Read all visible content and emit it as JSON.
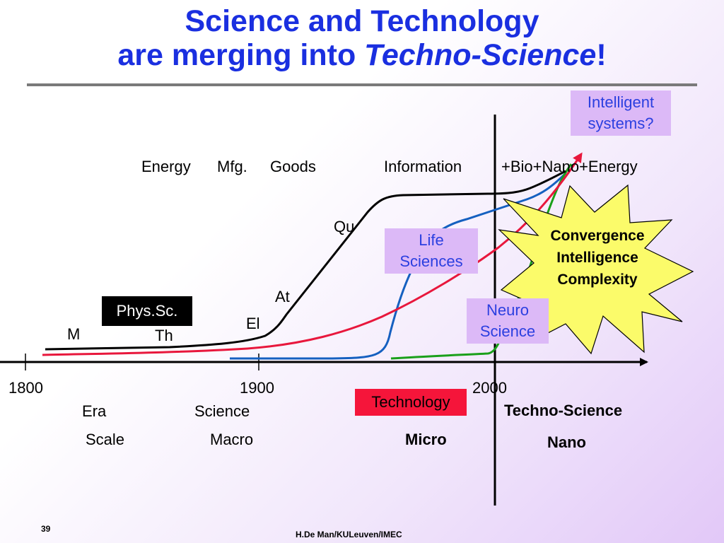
{
  "title": {
    "line1": "Science and Technology",
    "line2_prefix": "are merging into ",
    "line2_italic": "Techno-Science",
    "line2_suffix": "!"
  },
  "axis": {
    "ticks": [
      "1800",
      "1900",
      "2000"
    ]
  },
  "era_labels": {
    "row_label": "Era",
    "science": "Science",
    "technology": "Technology",
    "techno_science": "Techno-Science"
  },
  "scale_labels": {
    "row_label": "Scale",
    "macro": "Macro",
    "micro": "Micro",
    "nano": "Nano"
  },
  "domains": {
    "energy": "Energy",
    "mfg": "Mfg.",
    "goods": "Goods",
    "information": "Information",
    "plus_domains": "+Bio+Nano+Energy"
  },
  "curve_labels": {
    "m": "M",
    "th": "Th",
    "el": "El",
    "at": "At",
    "qu": "Qu",
    "phys_sc": "Phys.Sc."
  },
  "boxes": {
    "intelligent_line1": "Intelligent",
    "intelligent_line2": "systems?",
    "life_line1": "Life",
    "life_line2": "Sciences",
    "neuro_line1": "Neuro",
    "neuro_line2": "Science"
  },
  "burst": {
    "line1": "Convergence",
    "line2": "Intelligence",
    "line3": "Complexity"
  },
  "footer": {
    "page_number": "39",
    "credit": "H.De Man/KULeuven/IMEC"
  },
  "colors": {
    "title": "#1a2fe0",
    "physical_curve": "#000000",
    "red_curve": "#e8173c",
    "blue_curve": "#1560c0",
    "green_curve": "#1aa01a",
    "burst_fill": "#fbfb6a",
    "box_purple": "#dcb9f7",
    "technology_box": "#f5153a"
  }
}
